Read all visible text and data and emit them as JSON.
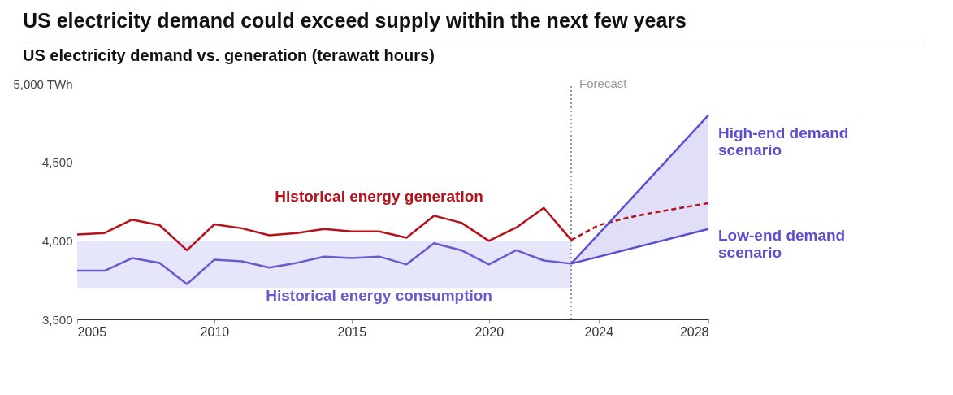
{
  "chart_data": {
    "type": "line",
    "title": "US electricity demand could exceed supply within the next few years",
    "subtitle": "US electricity demand vs. generation (terawatt hours)",
    "xlim": [
      2005,
      2028
    ],
    "xticks": [
      2005,
      2010,
      2015,
      2020,
      2024,
      2028
    ],
    "ylim": [
      3500,
      5000
    ],
    "yticks": [
      {
        "value": 3500,
        "label": "3,500"
      },
      {
        "value": 4000,
        "label": "4,000"
      },
      {
        "value": 4500,
        "label": "4,500"
      },
      {
        "value": 5000,
        "label": "5,000 TWh"
      }
    ],
    "grid": false,
    "marker": "none",
    "series": [
      {
        "name": "Historical energy generation",
        "color": "#b5121b",
        "x": [
          2005,
          2006,
          2007,
          2008,
          2009,
          2010,
          2011,
          2012,
          2013,
          2014,
          2015,
          2016,
          2017,
          2018,
          2019,
          2020,
          2021,
          2022,
          2023
        ],
        "values": [
          4040,
          4050,
          4135,
          4100,
          3940,
          4105,
          4080,
          4035,
          4050,
          4075,
          4060,
          4060,
          4020,
          4160,
          4115,
          4000,
          4085,
          4210,
          4005
        ]
      },
      {
        "name": "Historical energy consumption",
        "color": "#6a5acd",
        "x": [
          2005,
          2006,
          2007,
          2008,
          2009,
          2010,
          2011,
          2012,
          2013,
          2014,
          2015,
          2016,
          2017,
          2018,
          2019,
          2020,
          2021,
          2022,
          2023
        ],
        "values": [
          3810,
          3810,
          3890,
          3860,
          3725,
          3880,
          3870,
          3830,
          3860,
          3900,
          3890,
          3900,
          3850,
          3985,
          3940,
          3850,
          3940,
          3875,
          3855
        ]
      },
      {
        "color": "#b5121b",
        "line_style": "dashed",
        "x": [
          2023,
          2024,
          2025,
          2026,
          2027,
          2028
        ],
        "values": [
          4005,
          4100,
          4145,
          4180,
          4210,
          4240
        ]
      },
      {
        "name": "High-end demand scenario",
        "color": "#5b4fd0",
        "x": [
          2023,
          2028
        ],
        "values": [
          3855,
          4800
        ]
      },
      {
        "name": "Low-end demand scenario",
        "color": "#5b4fd0",
        "x": [
          2023,
          2028
        ],
        "values": [
          3855,
          4075
        ],
        "lower": [
          3855,
          4075
        ],
        "upper": [
          3855,
          4800
        ]
      }
    ],
    "bands": [
      {
        "axis": "y",
        "from": 3700,
        "to": 4000,
        "color": "#e6e6fa"
      }
    ],
    "ref_lines": [
      {
        "axis": "x",
        "value": 2023,
        "label": "Forecast",
        "color": "#999999",
        "line_style": "dotted"
      }
    ]
  }
}
